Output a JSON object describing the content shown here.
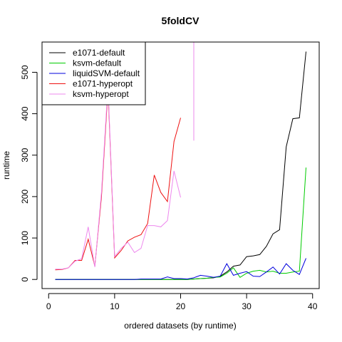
{
  "chart_data": {
    "type": "line",
    "title": "5foldCV",
    "xlabel": "ordered datasets (by runtime)",
    "ylabel": "runtime",
    "xlim": [
      -1,
      41
    ],
    "ylim": [
      -22,
      573
    ],
    "xticks": [
      0,
      10,
      20,
      30,
      40
    ],
    "yticks": [
      0,
      100,
      200,
      300,
      400,
      500
    ],
    "grid": false,
    "legend_position": "top-left",
    "series": [
      {
        "name": "e1071-default",
        "color": "#000000",
        "x": [
          1,
          2,
          3,
          4,
          5,
          6,
          7,
          8,
          9,
          10,
          11,
          12,
          13,
          14,
          15,
          16,
          17,
          18,
          19,
          20,
          21,
          22,
          23,
          24,
          25,
          26,
          27,
          28,
          29,
          30,
          31,
          32,
          33,
          34,
          35,
          36,
          37,
          38,
          39
        ],
        "y": [
          0,
          0,
          0,
          0,
          0,
          0,
          0,
          0,
          0,
          0,
          0,
          0,
          0,
          0,
          0,
          0,
          0,
          0,
          0,
          0,
          0,
          1,
          2,
          3,
          4,
          8,
          18,
          32,
          35,
          55,
          57,
          60,
          80,
          110,
          120,
          320,
          388,
          390,
          550
        ]
      },
      {
        "name": "ksvm-default",
        "color": "#00cc00",
        "x": [
          1,
          2,
          3,
          4,
          5,
          6,
          7,
          8,
          9,
          10,
          11,
          12,
          13,
          14,
          15,
          16,
          17,
          18,
          19,
          20,
          21,
          22,
          23,
          24,
          25,
          26,
          27,
          28,
          29,
          30,
          31,
          32,
          33,
          34,
          35,
          36,
          37,
          38,
          39
        ],
        "y": [
          0,
          0,
          0,
          0,
          0,
          0,
          0,
          0,
          0,
          0,
          0,
          0,
          0,
          0,
          0,
          0,
          0,
          0,
          0,
          0,
          0,
          1,
          2,
          3,
          5,
          6,
          15,
          28,
          5,
          15,
          20,
          22,
          18,
          20,
          15,
          15,
          18,
          20,
          270
        ]
      },
      {
        "name": "liquidSVM-default",
        "color": "#0000dd",
        "x": [
          1,
          2,
          3,
          4,
          5,
          6,
          7,
          8,
          9,
          10,
          11,
          12,
          13,
          14,
          15,
          16,
          17,
          18,
          19,
          20,
          21,
          22,
          23,
          24,
          25,
          26,
          27,
          28,
          29,
          30,
          31,
          32,
          33,
          34,
          35,
          36,
          37,
          38,
          39
        ],
        "y": [
          0,
          0,
          0,
          0,
          0,
          0,
          0,
          0,
          0,
          0,
          0,
          0,
          0,
          1,
          1,
          1,
          1,
          6,
          2,
          2,
          1,
          4,
          10,
          8,
          5,
          8,
          38,
          10,
          15,
          19,
          8,
          7,
          18,
          30,
          13,
          38,
          22,
          12,
          51
        ]
      },
      {
        "name": "e1071-hyperopt",
        "color": "#ee1111",
        "x": [
          1,
          2,
          3,
          4,
          5,
          6,
          7,
          8,
          9,
          10,
          11,
          12,
          13,
          14,
          15,
          16,
          17,
          18,
          19,
          20
        ],
        "y": [
          23,
          24,
          28,
          46,
          46,
          97,
          32,
          200,
          460,
          52,
          70,
          93,
          102,
          108,
          135,
          252,
          210,
          188,
          333,
          390
        ]
      },
      {
        "name": "ksvm-hyperopt",
        "color": "#ee88ee",
        "x": [
          1,
          2,
          3,
          4,
          5,
          6,
          7,
          8,
          9,
          10,
          11,
          12,
          13,
          14,
          15,
          16,
          17,
          18,
          19,
          20,
          null,
          22,
          22
        ],
        "y": [
          25,
          25,
          28,
          44,
          50,
          127,
          30,
          210,
          470,
          55,
          75,
          90,
          65,
          75,
          130,
          130,
          127,
          142,
          262,
          198,
          null,
          335,
          573
        ]
      }
    ]
  }
}
